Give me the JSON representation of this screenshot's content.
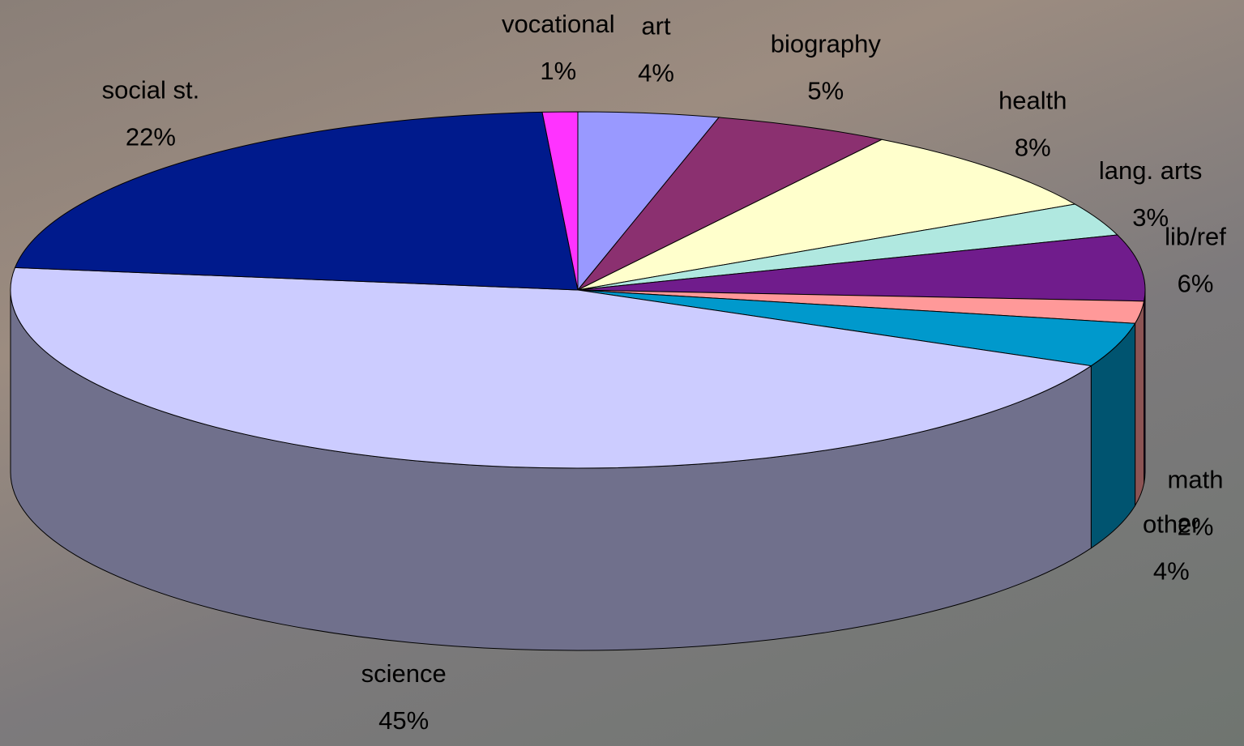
{
  "chart_data": {
    "type": "pie3d",
    "categories": [
      "art",
      "biography",
      "health",
      "lang. arts",
      "lib/ref",
      "math",
      "other",
      "science",
      "social st.",
      "vocational"
    ],
    "values": [
      4,
      5,
      8,
      3,
      6,
      2,
      4,
      45,
      22,
      1
    ],
    "value_labels": [
      "4%",
      "5%",
      "8%",
      "3%",
      "6%",
      "2%",
      "4%",
      "45%",
      "22%",
      "1%"
    ],
    "colors": [
      "#9999ff",
      "#8b3070",
      "#ffffcc",
      "#b0e8e0",
      "#701c8c",
      "#ff9999",
      "#0099cc",
      "#ccccff",
      "#001a8c",
      "#ff33ff"
    ]
  }
}
